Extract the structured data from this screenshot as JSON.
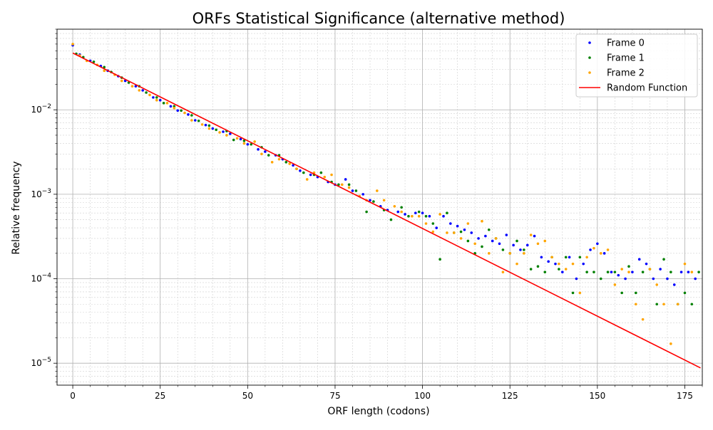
{
  "chart_data": {
    "type": "scatter",
    "title": "ORFs Statistical Significance (alternative method)",
    "xlabel": "ORF length (codons)",
    "ylabel": "Relative frequency",
    "xlim": [
      -4.5,
      180
    ],
    "ylim": [
      5.5e-06,
      0.09
    ],
    "yscale": "log",
    "grid": true,
    "legend_position": "top-right",
    "x_ticks": [
      0,
      25,
      50,
      75,
      100,
      125,
      150,
      175
    ],
    "y_ticks": [
      {
        "value": 1e-05,
        "base": "10",
        "exp": "−5"
      },
      {
        "value": 0.0001,
        "base": "10",
        "exp": "−4"
      },
      {
        "value": 0.001,
        "base": "10",
        "exp": "−3"
      },
      {
        "value": 0.01,
        "base": "10",
        "exp": "−2"
      }
    ],
    "series": [
      {
        "name": "Frame 0",
        "kind": "scatter",
        "color": "#0000ff",
        "x": [
          0,
          2,
          5,
          8,
          10,
          13,
          15,
          18,
          20,
          23,
          25,
          28,
          30,
          33,
          35,
          38,
          40,
          43,
          45,
          48,
          50,
          53,
          55,
          58,
          60,
          63,
          65,
          68,
          70,
          73,
          75,
          78,
          80,
          83,
          85,
          88,
          90,
          93,
          95,
          98,
          100,
          102,
          104,
          106,
          108,
          110,
          112,
          114,
          116,
          118,
          120,
          122,
          124,
          126,
          128,
          130,
          132,
          134,
          136,
          138,
          140,
          142,
          144,
          146,
          148,
          150,
          152,
          154,
          156,
          158,
          160,
          162,
          164,
          166,
          168,
          170,
          172,
          174,
          176,
          178
        ],
        "y": [
          0.058,
          0.045,
          0.038,
          0.033,
          0.029,
          0.025,
          0.022,
          0.019,
          0.017,
          0.014,
          0.013,
          0.011,
          0.0098,
          0.0088,
          0.0075,
          0.0066,
          0.006,
          0.0055,
          0.0052,
          0.0045,
          0.0039,
          0.0034,
          0.0032,
          0.0029,
          0.0026,
          0.0022,
          0.0019,
          0.0017,
          0.0016,
          0.0014,
          0.0013,
          0.0015,
          0.0011,
          0.001,
          0.00085,
          0.00072,
          0.00065,
          0.00062,
          0.00058,
          0.0006,
          0.0006,
          0.00055,
          0.0004,
          0.00055,
          0.00045,
          0.00042,
          0.00038,
          0.00035,
          0.0003,
          0.00032,
          0.00028,
          0.00026,
          0.00033,
          0.00025,
          0.00022,
          0.00025,
          0.00032,
          0.00018,
          0.00016,
          0.00015,
          0.00012,
          0.00018,
          0.0001,
          0.00015,
          0.00022,
          0.00026,
          0.0002,
          0.00012,
          0.00011,
          0.0001,
          0.00012,
          0.00017,
          0.00015,
          0.0001,
          0.00013,
          0.0001,
          8.5e-05,
          0.00012,
          0.00012,
          0.0001
        ]
      },
      {
        "name": "Frame 1",
        "kind": "scatter",
        "color": "#008000",
        "x": [
          1,
          3,
          6,
          9,
          11,
          14,
          16,
          19,
          21,
          24,
          26,
          29,
          31,
          34,
          36,
          39,
          41,
          44,
          46,
          49,
          51,
          54,
          56,
          59,
          61,
          64,
          66,
          69,
          71,
          74,
          76,
          79,
          81,
          84,
          86,
          89,
          91,
          94,
          96,
          99,
          101,
          103,
          105,
          107,
          109,
          111,
          113,
          115,
          117,
          119,
          121,
          123,
          125,
          127,
          129,
          131,
          133,
          135,
          137,
          139,
          141,
          143,
          145,
          147,
          149,
          151,
          153,
          155,
          157,
          159,
          161,
          163,
          165,
          167,
          169,
          171,
          173,
          175,
          177,
          179
        ],
        "y": [
          0.046,
          0.042,
          0.037,
          0.032,
          0.028,
          0.024,
          0.021,
          0.019,
          0.016,
          0.014,
          0.012,
          0.011,
          0.0098,
          0.0086,
          0.0074,
          0.0065,
          0.0058,
          0.0056,
          0.0044,
          0.0043,
          0.0039,
          0.0036,
          0.0029,
          0.0029,
          0.0024,
          0.002,
          0.0018,
          0.0017,
          0.0018,
          0.0014,
          0.0013,
          0.0013,
          0.0011,
          0.00062,
          0.00082,
          0.00065,
          0.0005,
          0.0007,
          0.00055,
          0.00062,
          0.00055,
          0.00045,
          0.00017,
          0.0006,
          0.00035,
          0.00036,
          0.00028,
          0.0002,
          0.00024,
          0.00038,
          0.0003,
          0.00022,
          0.0002,
          0.00028,
          0.00022,
          0.00013,
          0.00014,
          0.00012,
          0.00018,
          0.00013,
          0.00018,
          6.8e-05,
          0.00018,
          0.00012,
          0.00012,
          0.0001,
          0.00012,
          0.00012,
          6.8e-05,
          0.00014,
          6.8e-05,
          0.00012,
          0.00013,
          5e-05,
          0.00017,
          0.00012,
          5e-05,
          6.8e-05,
          5e-05,
          0.00012
        ]
      },
      {
        "name": "Frame 2",
        "kind": "scatter",
        "color": "#ffa500",
        "x": [
          0,
          2,
          4,
          7,
          9,
          12,
          14,
          17,
          19,
          22,
          24,
          27,
          29,
          32,
          34,
          37,
          39,
          42,
          44,
          47,
          49,
          52,
          54,
          57,
          59,
          62,
          64,
          67,
          69,
          72,
          74,
          77,
          79,
          82,
          84,
          87,
          89,
          92,
          94,
          97,
          99,
          101,
          103,
          105,
          107,
          109,
          111,
          113,
          115,
          117,
          119,
          121,
          123,
          125,
          127,
          129,
          131,
          133,
          135,
          137,
          139,
          141,
          143,
          145,
          147,
          149,
          151,
          153,
          155,
          157,
          159,
          161,
          163,
          165,
          167,
          169,
          171,
          173,
          175,
          177
        ],
        "y": [
          0.06,
          0.044,
          0.038,
          0.034,
          0.029,
          0.026,
          0.022,
          0.019,
          0.017,
          0.015,
          0.013,
          0.012,
          0.0105,
          0.0092,
          0.0075,
          0.0067,
          0.006,
          0.0054,
          0.005,
          0.0046,
          0.004,
          0.0042,
          0.003,
          0.0024,
          0.0026,
          0.0023,
          0.002,
          0.0015,
          0.0018,
          0.0016,
          0.0017,
          0.0013,
          0.0012,
          0.00095,
          0.00085,
          0.0011,
          0.00085,
          0.00072,
          0.00062,
          0.00055,
          0.00055,
          0.00045,
          0.00036,
          0.00058,
          0.00035,
          0.00035,
          0.0003,
          0.00045,
          0.00026,
          0.00048,
          0.0002,
          0.0003,
          0.00012,
          0.0002,
          0.00015,
          0.0002,
          0.00033,
          0.00026,
          0.00028,
          0.00018,
          0.00015,
          0.00013,
          0.00015,
          6.8e-05,
          0.00018,
          0.00023,
          0.0002,
          0.00022,
          8.5e-05,
          0.00013,
          0.00012,
          5e-05,
          3.3e-05,
          0.00013,
          8.5e-05,
          5e-05,
          1.7e-05,
          5e-05,
          0.00015,
          0.00012
        ]
      },
      {
        "name": "Random Function",
        "kind": "line",
        "color": "#ff0000",
        "x": [
          0,
          179.5
        ],
        "y": [
          0.047,
          8.8e-06
        ]
      }
    ]
  }
}
